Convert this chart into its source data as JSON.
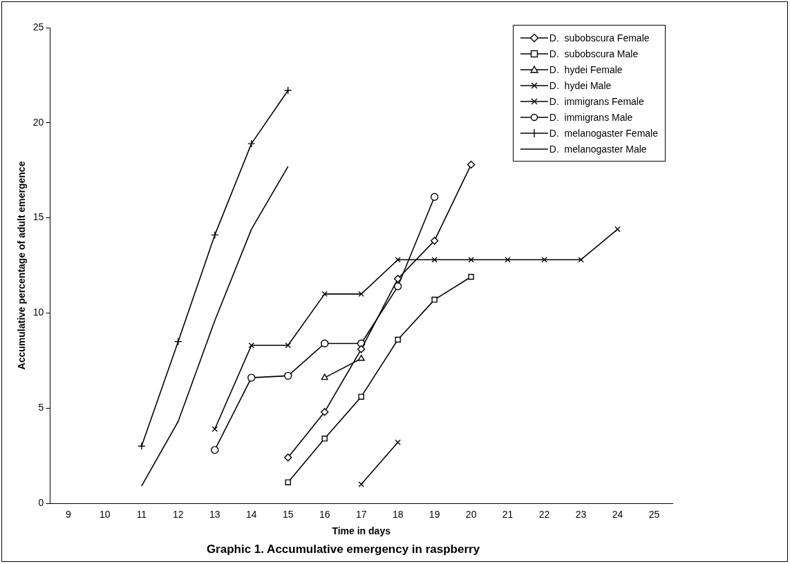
{
  "chart_data": {
    "type": "line",
    "title": "Graphic 1. Accumulative emergency in raspberry",
    "xlabel": "Time in days",
    "ylabel": "Accumulative percentage of adult emergence",
    "categories": [
      "9",
      "10",
      "11",
      "12",
      "13",
      "14",
      "15",
      "16",
      "17",
      "18",
      "19",
      "20",
      "21",
      "22",
      "23",
      "24",
      "25"
    ],
    "series": [
      {
        "name": "D.  subobscura Female",
        "color": "#000000",
        "marker": "diamond",
        "values": [
          null,
          null,
          null,
          null,
          null,
          null,
          2.4,
          4.8,
          8.1,
          11.8,
          13.8,
          17.8,
          null,
          null,
          null,
          null,
          null
        ]
      },
      {
        "name": "D.  subobscura Male",
        "color": "#000000",
        "marker": "square",
        "values": [
          null,
          null,
          null,
          null,
          null,
          null,
          1.1,
          3.4,
          5.6,
          8.6,
          10.7,
          11.9,
          null,
          null,
          null,
          null,
          null
        ]
      },
      {
        "name": "D.  hydei Female",
        "color": "#000000",
        "marker": "triangle",
        "values": [
          null,
          null,
          null,
          null,
          null,
          null,
          null,
          6.6,
          7.6,
          null,
          null,
          null,
          null,
          null,
          null,
          null,
          null
        ]
      },
      {
        "name": "D.  hydei Male",
        "color": "#000000",
        "marker": "cross",
        "values": [
          null,
          null,
          null,
          null,
          null,
          null,
          null,
          null,
          1.0,
          3.2,
          null,
          null,
          null,
          null,
          null,
          null,
          null
        ]
      },
      {
        "name": "D.  immigrans Female",
        "color": "#000000",
        "marker": "cross",
        "values": [
          null,
          null,
          null,
          null,
          3.9,
          8.3,
          8.3,
          11.0,
          11.0,
          12.8,
          12.8,
          12.8,
          12.8,
          12.8,
          12.8,
          14.4,
          null
        ]
      },
      {
        "name": "D.  immigrans Male",
        "color": "#000000",
        "marker": "circle",
        "values": [
          null,
          null,
          null,
          null,
          2.8,
          6.6,
          6.7,
          8.4,
          8.4,
          11.4,
          16.1,
          null,
          null,
          null,
          null,
          null,
          null
        ]
      },
      {
        "name": "D.  melanogaster Female",
        "color": "#000000",
        "marker": "plus",
        "values": [
          null,
          null,
          3.0,
          8.5,
          14.1,
          18.9,
          21.7,
          null,
          null,
          null,
          null,
          null,
          null,
          null,
          null,
          null,
          null
        ]
      },
      {
        "name": "D.  melanogaster Male",
        "color": "#000000",
        "marker": "none",
        "values": [
          null,
          null,
          0.9,
          4.3,
          9.6,
          14.4,
          17.7,
          null,
          null,
          null,
          null,
          null,
          null,
          null,
          null,
          null,
          null
        ]
      }
    ],
    "ylim": [
      0,
      25
    ],
    "yticks": [
      0,
      5,
      10,
      15,
      20,
      25
    ],
    "grid": false,
    "legend": "top right",
    "line_style": "solid"
  }
}
